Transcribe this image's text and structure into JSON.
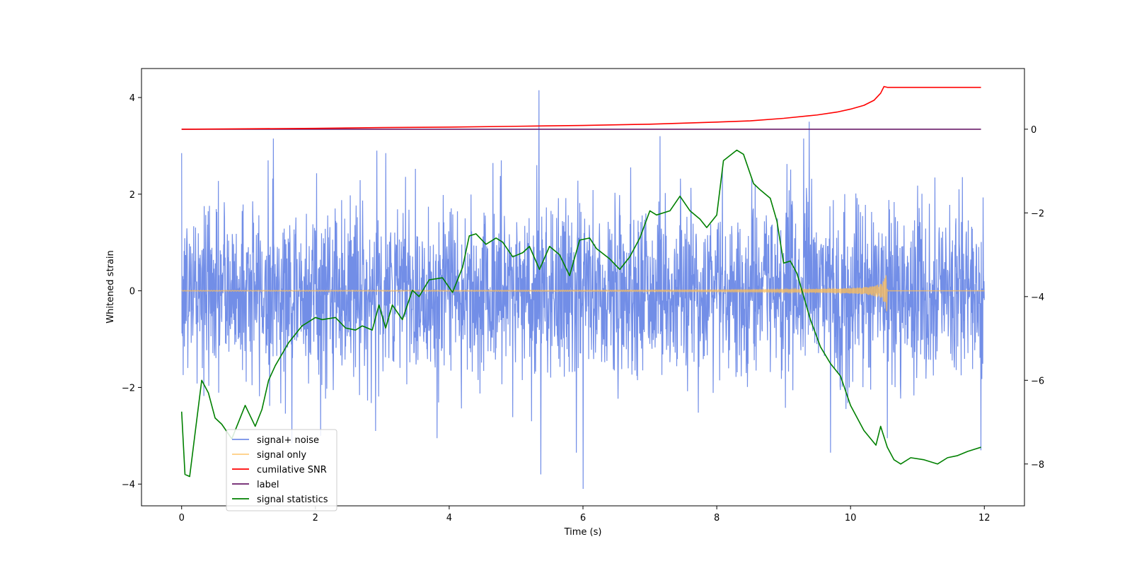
{
  "chart_data": {
    "type": "line",
    "title": "",
    "xlabel": "Time (s)",
    "ylabel": "Whitened strain",
    "y2label": "",
    "xlim": [
      -0.6,
      12.6
    ],
    "ylim": [
      -4.45,
      4.6
    ],
    "y2lim": [
      -9.0,
      1.45
    ],
    "x_ticks": [
      0,
      2,
      4,
      6,
      8,
      10,
      12
    ],
    "y_ticks": [
      -4,
      -2,
      0,
      2,
      4
    ],
    "y2_ticks": [
      -8,
      -6,
      -4,
      -2,
      0
    ],
    "grid": false,
    "legend_position": "lower-left",
    "series": [
      {
        "name": "signal+ noise",
        "axis": "left",
        "color": "#6a88e6",
        "style": "gaussian noise, std ~0.9 whitened strain, sampled 0–12 s",
        "x_range": [
          0,
          12
        ],
        "spikes": [
          {
            "x": 0.0,
            "y": 2.85
          },
          {
            "x": 1.37,
            "y": 3.15
          },
          {
            "x": 1.65,
            "y": -3.15
          },
          {
            "x": 2.08,
            "y": -3.0
          },
          {
            "x": 2.92,
            "y": 2.9
          },
          {
            "x": 2.9,
            "y": -2.9
          },
          {
            "x": 3.05,
            "y": 2.85
          },
          {
            "x": 3.82,
            "y": -3.05
          },
          {
            "x": 5.34,
            "y": 4.15
          },
          {
            "x": 5.37,
            "y": -3.8
          },
          {
            "x": 5.9,
            "y": -3.35
          },
          {
            "x": 6.0,
            "y": -4.1
          },
          {
            "x": 7.15,
            "y": 3.2
          },
          {
            "x": 9.3,
            "y": 3.15
          },
          {
            "x": 9.38,
            "y": 3.5
          },
          {
            "x": 9.7,
            "y": -3.35
          },
          {
            "x": 10.55,
            "y": -3.05
          },
          {
            "x": 11.95,
            "y": -3.3
          }
        ]
      },
      {
        "name": "signal only",
        "axis": "left",
        "color": "#ffbe55",
        "style": "inspiral chirp, near zero until ~9 s, growing to amplitude ~0.55 at merger 10.55 s, zero after",
        "x_range": [
          0,
          12
        ],
        "merger_time": 10.55,
        "peak_amplitude": 0.58
      },
      {
        "name": "cumilative SNR",
        "axis": "right",
        "color": "#ff0000",
        "x": [
          0,
          1,
          2,
          3,
          4,
          5,
          6,
          7,
          8,
          8.5,
          9,
          9.5,
          9.8,
          10,
          10.2,
          10.35,
          10.45,
          10.5,
          10.55,
          11.95
        ],
        "values": [
          0.0,
          0.01,
          0.02,
          0.04,
          0.05,
          0.07,
          0.09,
          0.12,
          0.17,
          0.2,
          0.26,
          0.34,
          0.41,
          0.48,
          0.57,
          0.69,
          0.86,
          1.02,
          1.0,
          1.0
        ]
      },
      {
        "name": "label",
        "axis": "right",
        "color": "#6a1b6a",
        "x": [
          0,
          11.95
        ],
        "values": [
          0.0,
          0.0
        ]
      },
      {
        "name": "signal statistics",
        "axis": "right",
        "color": "#008000",
        "x": [
          0,
          0.05,
          0.12,
          0.3,
          0.4,
          0.5,
          0.6,
          0.75,
          0.85,
          0.95,
          1.1,
          1.2,
          1.3,
          1.4,
          1.6,
          1.8,
          1.9,
          2.0,
          2.1,
          2.3,
          2.45,
          2.6,
          2.7,
          2.85,
          2.95,
          3.05,
          3.15,
          3.3,
          3.45,
          3.55,
          3.7,
          3.9,
          4.05,
          4.2,
          4.3,
          4.4,
          4.55,
          4.7,
          4.8,
          4.95,
          5.1,
          5.2,
          5.35,
          5.5,
          5.65,
          5.8,
          5.95,
          6.1,
          6.2,
          6.4,
          6.55,
          6.7,
          6.85,
          7.0,
          7.1,
          7.3,
          7.45,
          7.6,
          7.75,
          7.85,
          8.0,
          8.1,
          8.3,
          8.4,
          8.55,
          8.65,
          8.8,
          8.9,
          9.0,
          9.1,
          9.2,
          9.4,
          9.55,
          9.7,
          9.85,
          10.0,
          10.2,
          10.38,
          10.45,
          10.55,
          10.65,
          10.75,
          10.9,
          11.1,
          11.3,
          11.45,
          11.6,
          11.75,
          11.95
        ],
        "values": [
          -6.75,
          -8.25,
          -8.3,
          -6.0,
          -6.3,
          -6.9,
          -7.05,
          -7.4,
          -7.0,
          -6.6,
          -7.1,
          -6.7,
          -6.0,
          -5.65,
          -5.1,
          -4.7,
          -4.6,
          -4.5,
          -4.55,
          -4.5,
          -4.75,
          -4.8,
          -4.7,
          -4.8,
          -4.2,
          -4.75,
          -4.2,
          -4.55,
          -3.85,
          -4.0,
          -3.6,
          -3.55,
          -3.9,
          -3.3,
          -2.55,
          -2.5,
          -2.75,
          -2.6,
          -2.7,
          -3.05,
          -2.95,
          -2.8,
          -3.35,
          -2.8,
          -3.0,
          -3.5,
          -2.65,
          -2.6,
          -2.85,
          -3.1,
          -3.35,
          -3.05,
          -2.6,
          -1.95,
          -2.05,
          -1.95,
          -1.6,
          -1.95,
          -2.15,
          -2.35,
          -2.05,
          -0.75,
          -0.5,
          -0.6,
          -1.3,
          -1.45,
          -1.65,
          -2.2,
          -3.2,
          -3.15,
          -3.45,
          -4.55,
          -5.2,
          -5.6,
          -5.9,
          -6.6,
          -7.2,
          -7.55,
          -7.1,
          -7.6,
          -7.9,
          -8.0,
          -7.85,
          -7.9,
          -8.0,
          -7.85,
          -7.8,
          -7.7,
          -7.6
        ]
      }
    ]
  }
}
